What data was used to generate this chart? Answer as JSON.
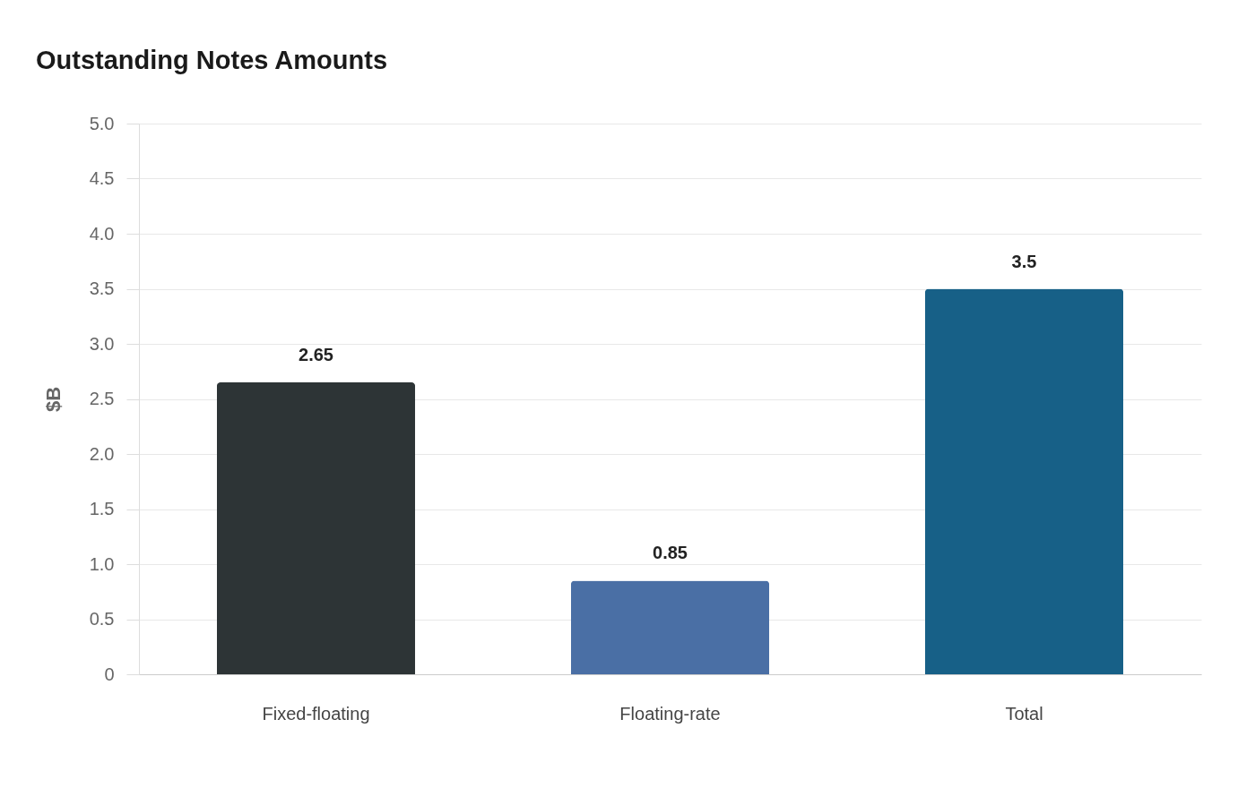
{
  "chart_data": {
    "type": "bar",
    "title": "Outstanding Notes Amounts",
    "ylabel": "$B",
    "categories": [
      "Fixed-floating",
      "Floating-rate",
      "Total"
    ],
    "values": [
      2.65,
      0.85,
      3.5
    ],
    "colors": [
      "#2d3436",
      "#4a6fa5",
      "#176087"
    ],
    "ylim": [
      0,
      5
    ],
    "yticks": [
      0,
      0.5,
      {
        "value": 1,
        "label": "1.0"
      },
      1.5,
      {
        "value": 2,
        "label": "2.0"
      },
      2.5,
      {
        "value": 3,
        "label": "3.0"
      },
      3.5,
      {
        "value": 4,
        "label": "4.0"
      },
      4.5,
      {
        "value": 5,
        "label": "5.0"
      }
    ],
    "grid": "y",
    "data_labels": true
  }
}
